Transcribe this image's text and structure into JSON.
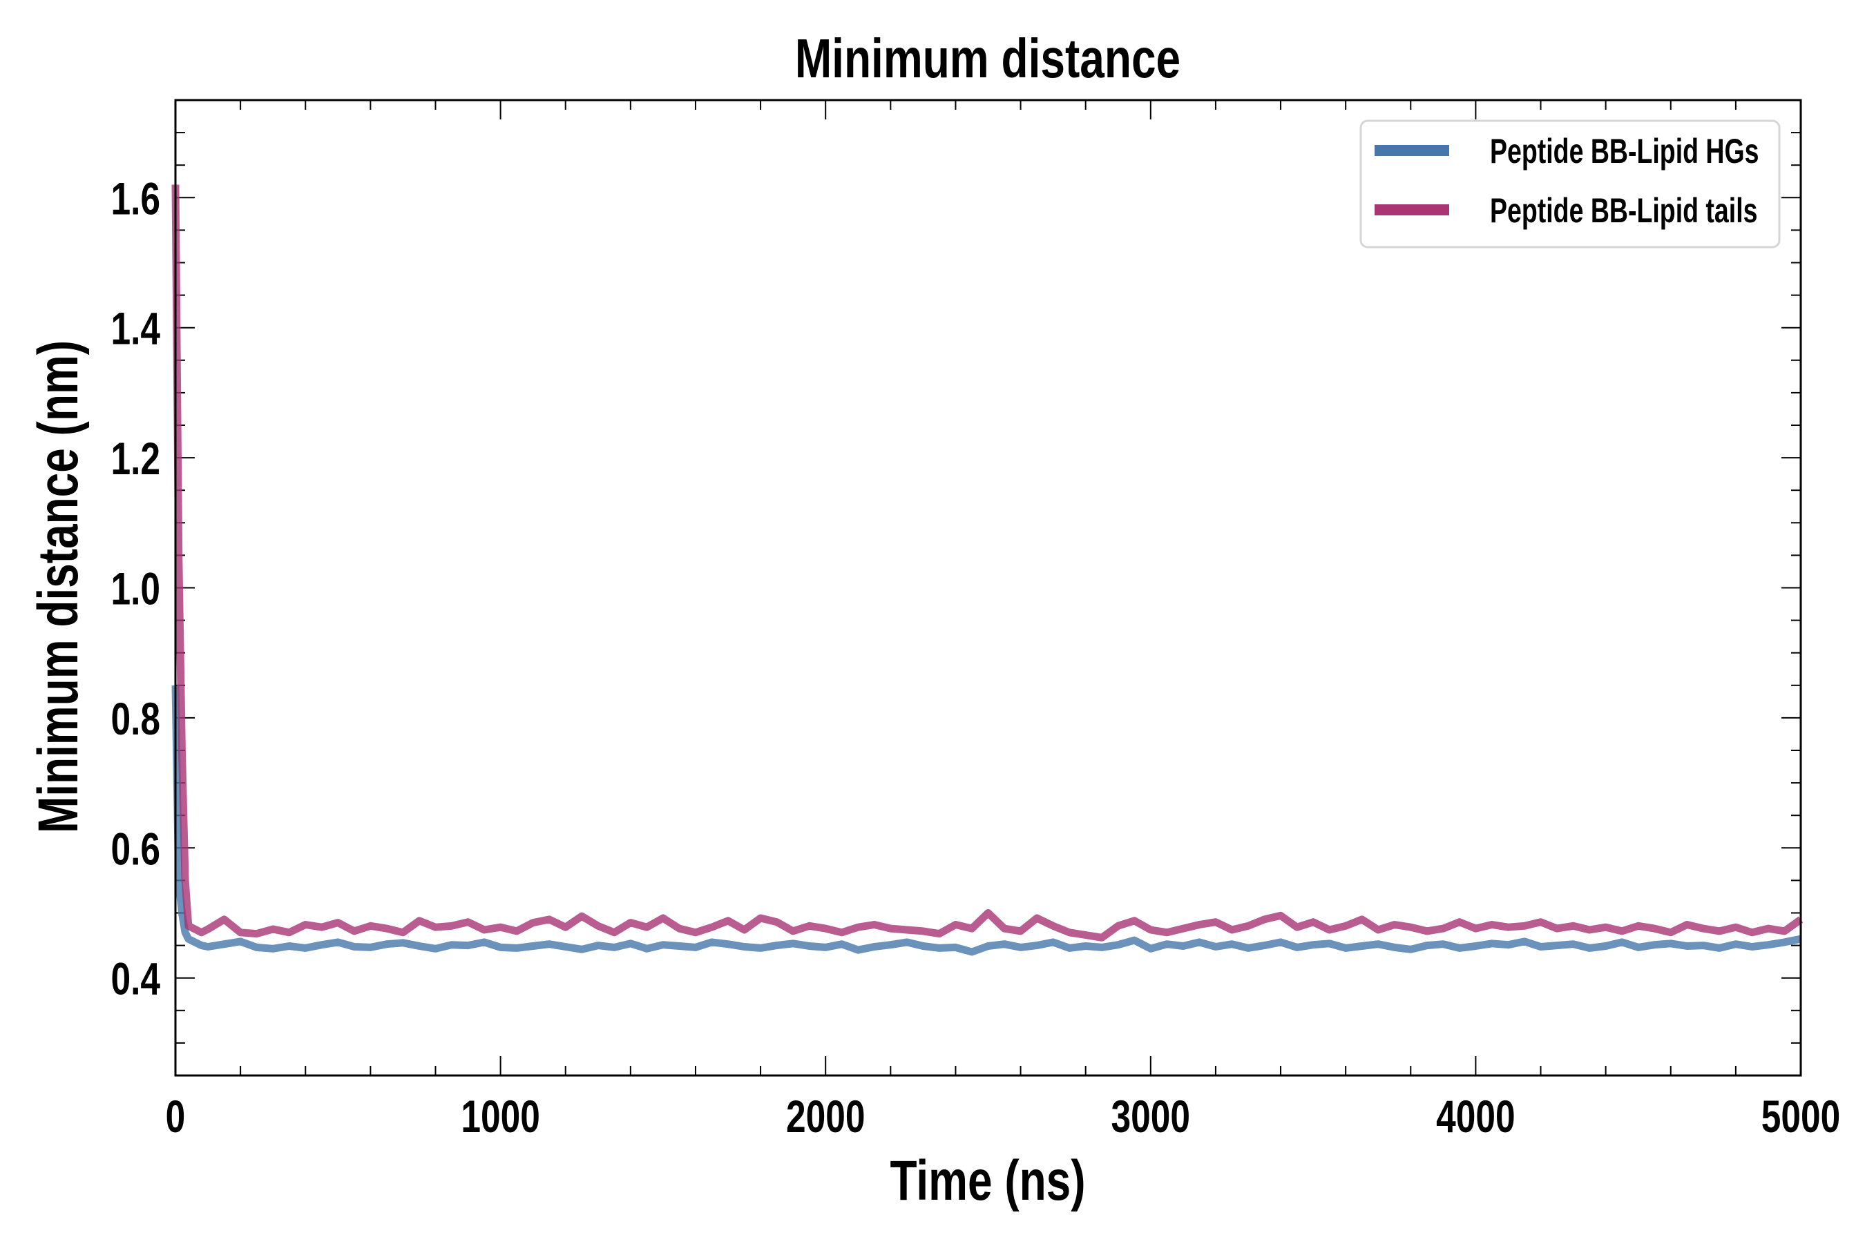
{
  "chart_data": {
    "type": "line",
    "title": "Minimum distance",
    "xlabel": "Time (ns)",
    "ylabel": "Minimum distance (nm)",
    "xlim": [
      0,
      5000
    ],
    "ylim": [
      0.25,
      1.75
    ],
    "xticks": [
      0,
      1000,
      2000,
      3000,
      4000,
      5000
    ],
    "xtick_labels": [
      "0",
      "1000",
      "2000",
      "3000",
      "4000",
      "5000"
    ],
    "yticks": [
      0.4,
      0.6,
      0.8,
      1.0,
      1.2,
      1.4,
      1.6
    ],
    "ytick_labels": [
      "0.4",
      "0.6",
      "0.8",
      "1.0",
      "1.2",
      "1.4",
      "1.6"
    ],
    "x_minor_step": 200,
    "y_minor_step": 0.05,
    "grid": false,
    "legend_position": "top-right",
    "x": [
      0,
      10,
      20,
      30,
      40,
      60,
      80,
      100,
      150,
      200,
      250,
      300,
      350,
      400,
      450,
      500,
      550,
      600,
      650,
      700,
      750,
      800,
      850,
      900,
      950,
      1000,
      1050,
      1100,
      1150,
      1200,
      1250,
      1300,
      1350,
      1400,
      1450,
      1500,
      1550,
      1600,
      1650,
      1700,
      1750,
      1800,
      1850,
      1900,
      1950,
      2000,
      2050,
      2100,
      2150,
      2200,
      2250,
      2300,
      2350,
      2400,
      2450,
      2500,
      2550,
      2600,
      2650,
      2700,
      2750,
      2800,
      2850,
      2900,
      2950,
      3000,
      3050,
      3100,
      3150,
      3200,
      3250,
      3300,
      3350,
      3400,
      3450,
      3500,
      3550,
      3600,
      3650,
      3700,
      3750,
      3800,
      3850,
      3900,
      3950,
      4000,
      4050,
      4100,
      4150,
      4200,
      4250,
      4300,
      4350,
      4400,
      4450,
      4500,
      4550,
      4600,
      4650,
      4700,
      4750,
      4800,
      4850,
      4900,
      4950,
      5000
    ],
    "series": [
      {
        "name": "Peptide BB-Lipid HGs",
        "color": "#4677aa",
        "values": [
          0.85,
          0.55,
          0.5,
          0.47,
          0.46,
          0.455,
          0.45,
          0.448,
          0.452,
          0.456,
          0.447,
          0.445,
          0.449,
          0.446,
          0.451,
          0.455,
          0.448,
          0.447,
          0.452,
          0.454,
          0.449,
          0.445,
          0.451,
          0.45,
          0.455,
          0.447,
          0.446,
          0.449,
          0.452,
          0.448,
          0.444,
          0.45,
          0.447,
          0.453,
          0.445,
          0.451,
          0.449,
          0.447,
          0.455,
          0.452,
          0.448,
          0.446,
          0.45,
          0.453,
          0.449,
          0.447,
          0.452,
          0.443,
          0.448,
          0.451,
          0.455,
          0.449,
          0.446,
          0.447,
          0.44,
          0.449,
          0.452,
          0.447,
          0.45,
          0.455,
          0.446,
          0.449,
          0.447,
          0.451,
          0.458,
          0.445,
          0.452,
          0.449,
          0.455,
          0.448,
          0.452,
          0.446,
          0.45,
          0.455,
          0.447,
          0.451,
          0.453,
          0.446,
          0.449,
          0.452,
          0.447,
          0.444,
          0.45,
          0.452,
          0.446,
          0.449,
          0.453,
          0.451,
          0.456,
          0.448,
          0.45,
          0.452,
          0.446,
          0.449,
          0.455,
          0.447,
          0.451,
          0.453,
          0.449,
          0.45,
          0.446,
          0.452,
          0.448,
          0.451,
          0.455,
          0.46
        ]
      },
      {
        "name": "Peptide BB-Lipid tails",
        "color": "#a83574",
        "values": [
          1.62,
          1.05,
          0.75,
          0.55,
          0.48,
          0.475,
          0.47,
          0.475,
          0.49,
          0.47,
          0.468,
          0.475,
          0.47,
          0.482,
          0.478,
          0.485,
          0.472,
          0.48,
          0.476,
          0.47,
          0.488,
          0.478,
          0.48,
          0.486,
          0.474,
          0.478,
          0.472,
          0.485,
          0.49,
          0.478,
          0.495,
          0.48,
          0.47,
          0.485,
          0.478,
          0.492,
          0.476,
          0.47,
          0.478,
          0.488,
          0.474,
          0.492,
          0.486,
          0.472,
          0.48,
          0.476,
          0.47,
          0.478,
          0.482,
          0.476,
          0.474,
          0.472,
          0.468,
          0.482,
          0.476,
          0.5,
          0.476,
          0.472,
          0.492,
          0.48,
          0.47,
          0.466,
          0.462,
          0.48,
          0.488,
          0.474,
          0.47,
          0.476,
          0.482,
          0.486,
          0.474,
          0.48,
          0.49,
          0.496,
          0.478,
          0.486,
          0.474,
          0.48,
          0.49,
          0.474,
          0.482,
          0.478,
          0.472,
          0.476,
          0.486,
          0.476,
          0.482,
          0.478,
          0.48,
          0.486,
          0.476,
          0.48,
          0.474,
          0.478,
          0.472,
          0.48,
          0.476,
          0.47,
          0.482,
          0.476,
          0.472,
          0.478,
          0.47,
          0.476,
          0.472,
          0.49
        ]
      }
    ]
  }
}
